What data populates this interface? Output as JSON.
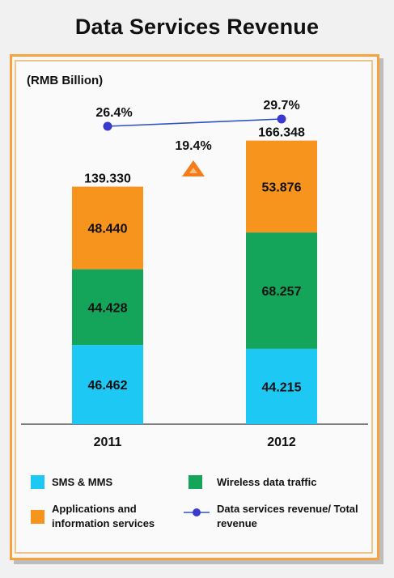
{
  "title": "Data Services Revenue",
  "unit_label": "(RMB Billion)",
  "colors": {
    "sms": "#1ec8f5",
    "wireless": "#14a55a",
    "apps": "#f7941d",
    "ratio_line": "#2b52c7",
    "ratio_marker": "#3a3acf",
    "growth_arrow": "#f57c1c",
    "axis": "#555555"
  },
  "chart_data": {
    "type": "bar",
    "stacked": true,
    "categories": [
      "2011",
      "2012"
    ],
    "series": [
      {
        "name": "SMS & MMS",
        "values": [
          46.462,
          44.215
        ],
        "color": "#1ec8f5"
      },
      {
        "name": "Wireless data traffic",
        "values": [
          44.428,
          68.257
        ],
        "color": "#14a55a"
      },
      {
        "name": "Applications and information services",
        "values": [
          48.44,
          53.876
        ],
        "color": "#f7941d"
      }
    ],
    "series_labels": [
      [
        "46.462",
        "44.215"
      ],
      [
        "44.428",
        "68.257"
      ],
      [
        "48.440",
        "53.876"
      ]
    ],
    "totals": [
      139.33,
      166.348
    ],
    "total_labels": [
      "139.330",
      "166.348"
    ],
    "line_series": {
      "name": "Data services revenue/ Total revenue",
      "values": [
        26.4,
        29.7
      ],
      "labels": [
        "26.4%",
        "29.7%"
      ]
    },
    "growth": {
      "label": "19.4%",
      "icon": "up-triangle-icon"
    },
    "ylabel": "RMB Billion",
    "ylim": [
      0,
      195
    ],
    "grid": false,
    "legend_position": "bottom"
  },
  "legend": [
    {
      "label": "SMS & MMS",
      "kind": "swatch",
      "color": "#1ec8f5"
    },
    {
      "label": "Wireless data traffic",
      "kind": "swatch",
      "color": "#14a55a"
    },
    {
      "label": "Applications and information services",
      "kind": "swatch",
      "color": "#f7941d"
    },
    {
      "label": "Data services revenue/ Total revenue",
      "kind": "line",
      "color": "#2b52c7"
    }
  ]
}
